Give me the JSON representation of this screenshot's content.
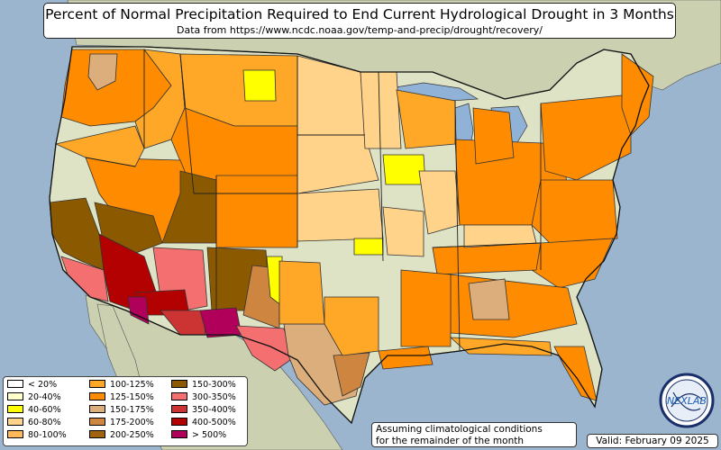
{
  "title": "Percent of Normal Precipitation Required to End Current Hydrological Drought in 3 Months",
  "subtitle": "Data from https://www.ncdc.noaa.gov/temp-and-precip/drought/recovery/",
  "legend": [
    {
      "label": "< 20%",
      "color": "#ffffff"
    },
    {
      "label": "20-40%",
      "color": "#ffffcc"
    },
    {
      "label": "40-60%",
      "color": "#ffff00"
    },
    {
      "label": "60-80%",
      "color": "#ffd38a"
    },
    {
      "label": "80-100%",
      "color": "#ffb85a"
    },
    {
      "label": "100-125%",
      "color": "#ffa726"
    },
    {
      "label": "125-150%",
      "color": "#ff8c00"
    },
    {
      "label": "150-175%",
      "color": "#dcae7c"
    },
    {
      "label": "175-200%",
      "color": "#cd853f"
    },
    {
      "label": "200-250%",
      "color": "#a0620f"
    },
    {
      "label": "150-300%",
      "color": "#8b5a00"
    },
    {
      "label": "300-350%",
      "color": "#f47070"
    },
    {
      "label": "350-400%",
      "color": "#cc3333"
    },
    {
      "label": "400-500%",
      "color": "#b30000"
    },
    {
      "label": "> 500%",
      "color": "#b0005a"
    }
  ],
  "note_line1": "Assuming climatological conditions",
  "note_line2": "for the remainder of the month",
  "valid": "Valid: February 09 2025",
  "logo_text": "NEXLAB",
  "colors": {
    "ocean": "#9bb5cf",
    "land_us": "#dfe3c6",
    "land_other": "#cbd1b0",
    "lakes": "#8fb2d6"
  }
}
